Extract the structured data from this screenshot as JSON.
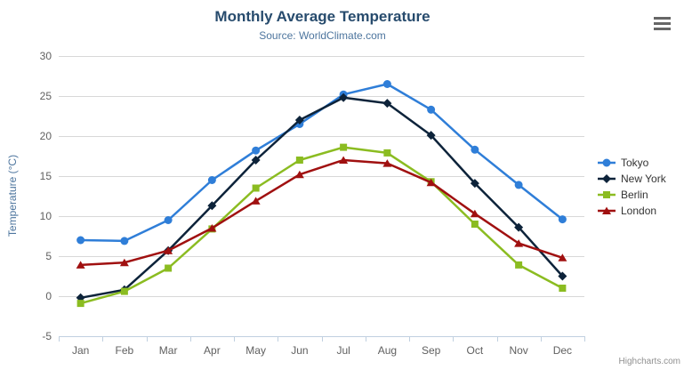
{
  "chart": {
    "credits": "Highcharts.com"
  },
  "chart_data": {
    "type": "line",
    "title": "Monthly Average Temperature",
    "subtitle": "Source: WorldClimate.com",
    "xlabel": "",
    "ylabel": "Temperature (°C)",
    "ylim": [
      -5,
      30
    ],
    "y_ticks": [
      30,
      25,
      20,
      15,
      10,
      5,
      0,
      -5
    ],
    "grid": true,
    "legend_position": "right",
    "categories": [
      "Jan",
      "Feb",
      "Mar",
      "Apr",
      "May",
      "Jun",
      "Jul",
      "Aug",
      "Sep",
      "Oct",
      "Nov",
      "Dec"
    ],
    "series": [
      {
        "name": "Tokyo",
        "color": "#2f7ed8",
        "marker": "circle",
        "values": [
          7.0,
          6.9,
          9.5,
          14.5,
          18.2,
          21.5,
          25.2,
          26.5,
          23.3,
          18.3,
          13.9,
          9.6
        ]
      },
      {
        "name": "New York",
        "color": "#0d233a",
        "marker": "diamond",
        "values": [
          -0.2,
          0.8,
          5.7,
          11.3,
          17.0,
          22.0,
          24.8,
          24.1,
          20.1,
          14.1,
          8.6,
          2.5
        ]
      },
      {
        "name": "Berlin",
        "color": "#8bbc21",
        "marker": "square",
        "values": [
          -0.9,
          0.6,
          3.5,
          8.4,
          13.5,
          17.0,
          18.6,
          17.9,
          14.3,
          9.0,
          3.9,
          1.0
        ]
      },
      {
        "name": "London",
        "color": "#a01010",
        "marker": "triangle",
        "values": [
          3.9,
          4.2,
          5.7,
          8.5,
          11.9,
          15.2,
          17.0,
          16.6,
          14.2,
          10.3,
          6.6,
          4.8
        ]
      }
    ]
  }
}
